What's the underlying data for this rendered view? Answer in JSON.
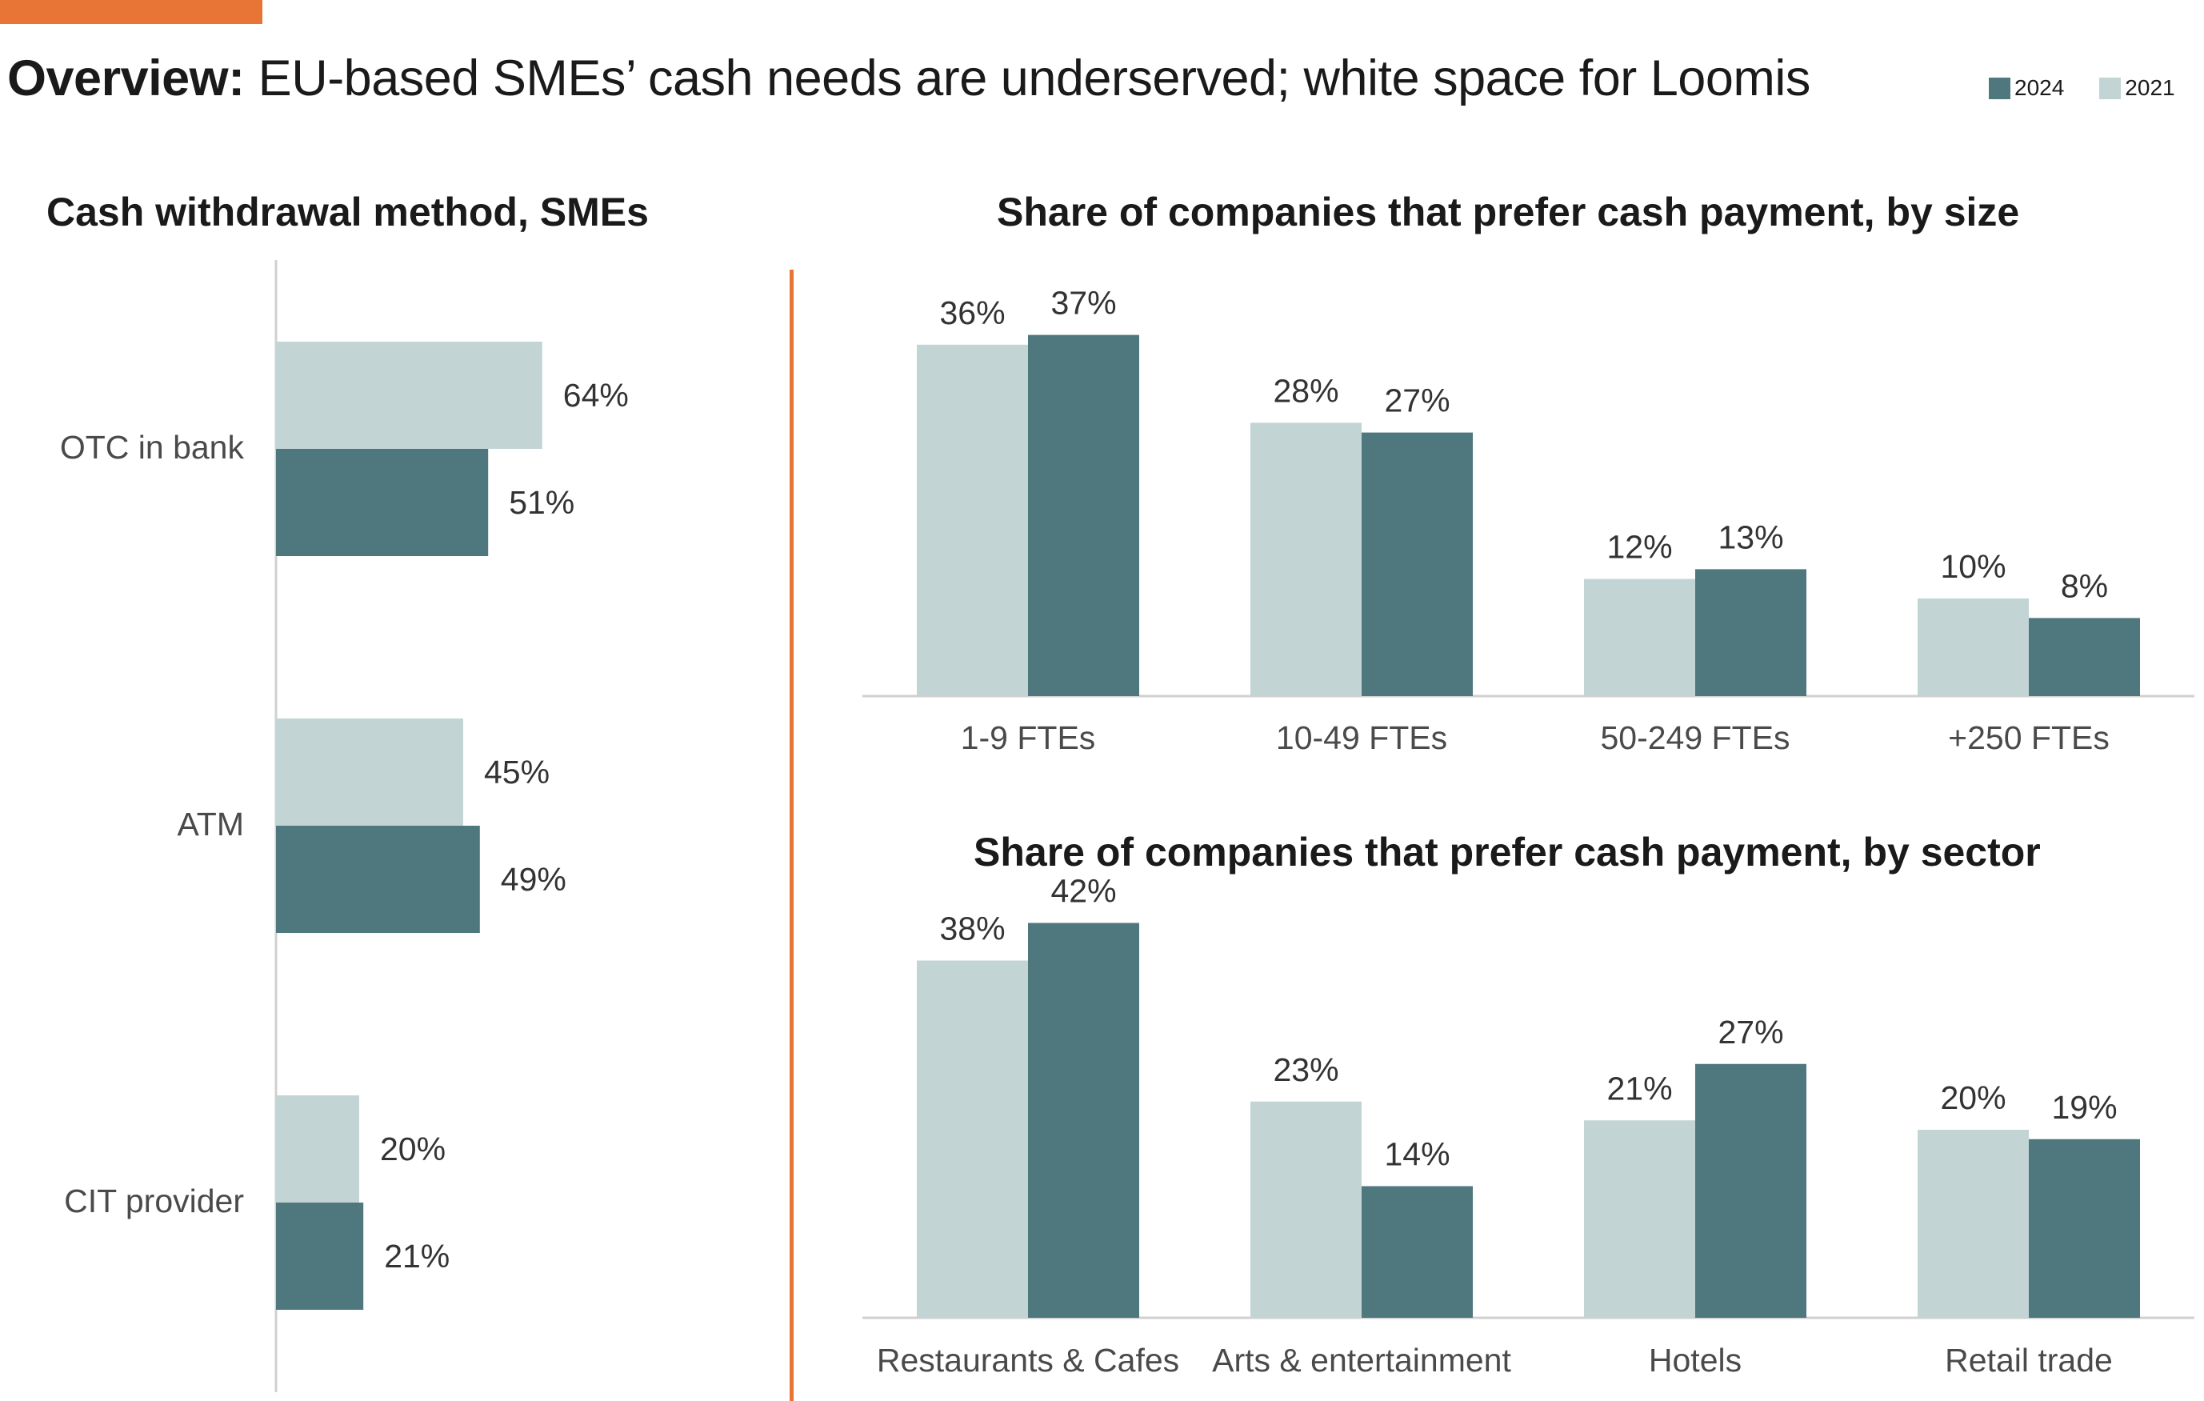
{
  "header": {
    "title_lead": "Overview:",
    "title_rest": " EU-based SMEs’ cash needs are underserved; white space for Loomis"
  },
  "legend": [
    {
      "label": "2024",
      "color": "#4E787D"
    },
    {
      "label": "2021",
      "color": "#C3D4D5"
    }
  ],
  "colors": {
    "accent": "#E87436",
    "series_2024": "#4E787D",
    "series_2021": "#C3D4D5",
    "axis": "#D0D0D0"
  },
  "chart_data": [
    {
      "type": "bar",
      "orientation": "horizontal",
      "title": "Cash withdrawal method, SMEs",
      "categories": [
        "OTC in bank",
        "ATM",
        "CIT provider"
      ],
      "series": [
        {
          "name": "2021",
          "values": [
            64,
            45,
            20
          ],
          "labels": [
            "64%",
            "45%",
            "20%"
          ]
        },
        {
          "name": "2024",
          "values": [
            51,
            49,
            21
          ],
          "labels": [
            "51%",
            "49%",
            "21%"
          ]
        }
      ],
      "xlim": [
        0,
        100
      ],
      "grid": false
    },
    {
      "type": "bar",
      "title": "Share of companies that prefer cash payment, by size",
      "categories": [
        "1-9 FTEs",
        "10-49 FTEs",
        "50-249 FTEs",
        "+250 FTEs"
      ],
      "series": [
        {
          "name": "2021",
          "values": [
            36,
            28,
            12,
            10
          ],
          "labels": [
            "36%",
            "28%",
            "12%",
            "10%"
          ]
        },
        {
          "name": "2024",
          "values": [
            37,
            27,
            13,
            8
          ],
          "labels": [
            "37%",
            "27%",
            "13%",
            "8%"
          ]
        }
      ],
      "ylim": [
        0,
        40
      ],
      "grid": false
    },
    {
      "type": "bar",
      "title": "Share of companies that prefer cash payment, by sector",
      "categories": [
        "Restaurants & Cafes",
        "Arts & entertainment",
        "Hotels",
        "Retail trade"
      ],
      "series": [
        {
          "name": "2021",
          "values": [
            38,
            23,
            21,
            20
          ],
          "labels": [
            "38%",
            "23%",
            "21%",
            "20%"
          ]
        },
        {
          "name": "2024",
          "values": [
            42,
            14,
            27,
            19
          ],
          "labels": [
            "42%",
            "14%",
            "27%",
            "19%"
          ]
        }
      ],
      "ylim": [
        0,
        45
      ],
      "grid": false
    }
  ]
}
